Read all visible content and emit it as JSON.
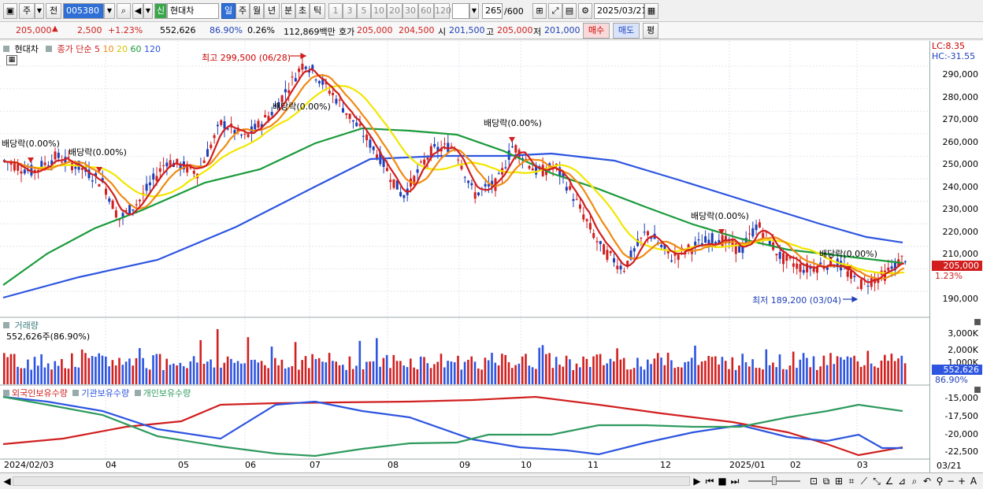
{
  "toolbar": {
    "period_label": "주",
    "prev_label": "전",
    "code": "005380",
    "new_label": "신",
    "stock_name": "현대차",
    "timeframes": [
      "일",
      "주",
      "월",
      "년",
      "분",
      "초",
      "틱"
    ],
    "active_timeframe": "일",
    "intervals": [
      "1",
      "3",
      "5",
      "10",
      "20",
      "30",
      "60",
      "120"
    ],
    "count": "265",
    "count_total": "/600",
    "date": "2025/03/21"
  },
  "quote": {
    "price": "205,000",
    "change": "2,500",
    "change_pct": "+1.23%",
    "volume": "552,626",
    "vol_ratio": "86.90%",
    "turnover": "0.26%",
    "amount": "112,869백만",
    "bid_label": "호가",
    "ask": "205,000",
    "bid": "204,500",
    "open_label": "시",
    "open": "201,500",
    "high_label": "고",
    "high": "205,000",
    "low_label": "저",
    "low": "201,000",
    "buy_label": "매수",
    "sell_label": "매도",
    "avg_label": "평"
  },
  "price_panel": {
    "name": "현대차",
    "ma_label": "종가 단순",
    "ma_periods": [
      "5",
      "10",
      "20",
      "60",
      "120"
    ],
    "ma_colors": [
      "#d11f1f",
      "#f08a12",
      "#e8e000",
      "#1a9a3a",
      "#2d55e0"
    ],
    "lc": "LC:8.35",
    "hc": "HC:-31.55",
    "yticks": [
      "290,000",
      "280,000",
      "270,000",
      "260,000",
      "250,000",
      "240,000",
      "230,000",
      "220,000",
      "210,000",
      "190,000"
    ],
    "current_price": "205,000",
    "current_pct": "1.23%",
    "annotations": {
      "high": "최고 299,500 (06/28)",
      "low": "최저 189,200 (03/04)",
      "dividend": "배당락(0.00%)"
    }
  },
  "volume_panel": {
    "label": "거래량",
    "value": "552,626주(86.90%)",
    "yticks": [
      "3,000K",
      "2,000K",
      "1,000K"
    ],
    "current": "552,626",
    "current_pct": "86.90%"
  },
  "holdings_panel": {
    "series": [
      "외국인보유수량",
      "기관보유수량",
      "개인보유수량"
    ],
    "colors": [
      "#d11f1f",
      "#2d55e0",
      "#1a9a3a"
    ],
    "yticks": [
      "-15,000",
      "-17,500",
      "-20,000",
      "-22,500"
    ]
  },
  "x_axis": [
    "2024/02/03",
    "04",
    "05",
    "06",
    "07",
    "08",
    "09",
    "10",
    "11",
    "12",
    "2025/01",
    "02",
    "03"
  ],
  "x_axis_right": "03/21"
}
